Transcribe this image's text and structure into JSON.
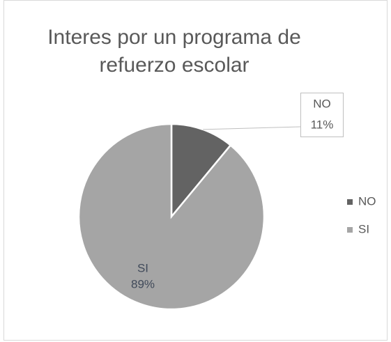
{
  "chart_data": {
    "type": "pie",
    "title": "Interes por un programa de refuerzo escolar",
    "categories": [
      "NO",
      "SI"
    ],
    "values": [
      11,
      89
    ],
    "value_labels": [
      "11%",
      "89%"
    ],
    "colors": [
      "#636363",
      "#a5a5a5"
    ],
    "legend": "right"
  }
}
